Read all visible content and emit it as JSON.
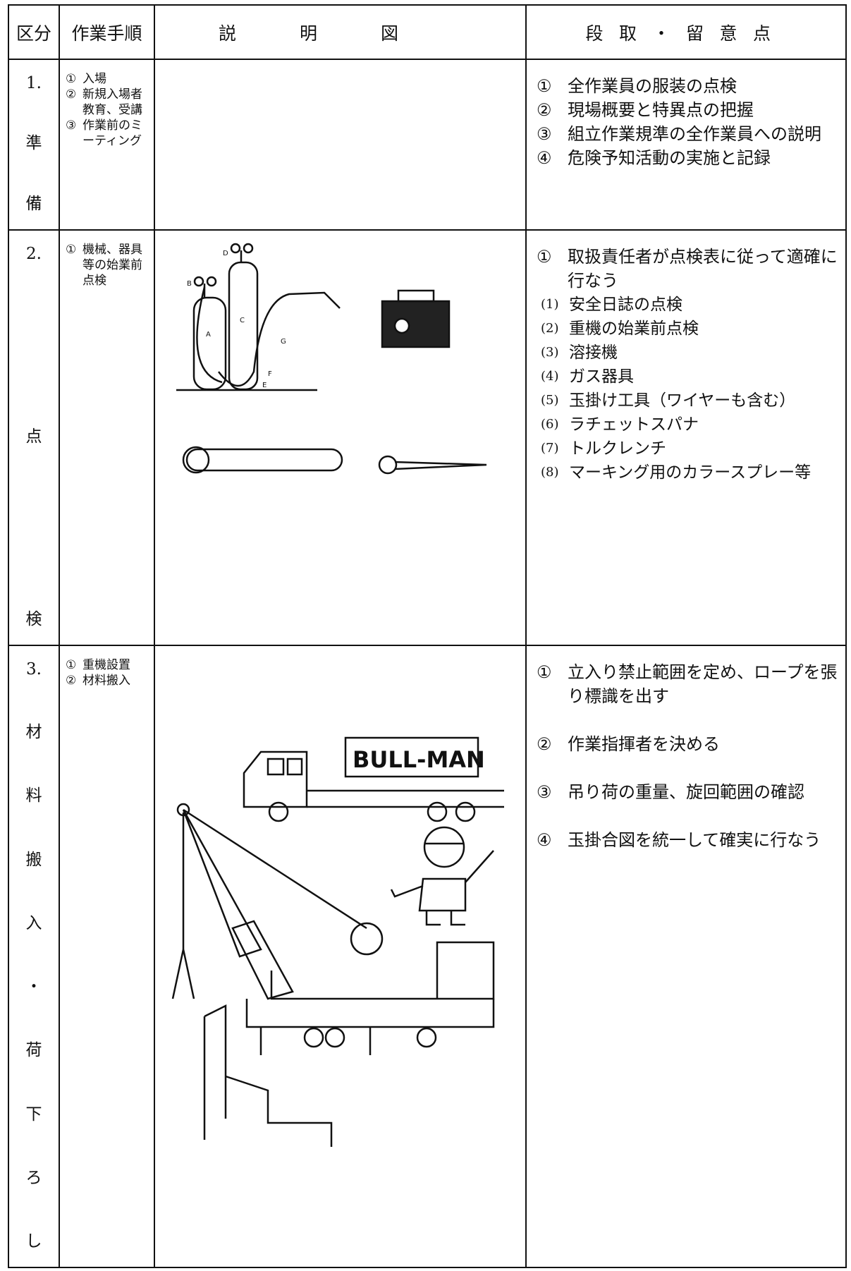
{
  "header": [
    "区分",
    "作業手順",
    "説明図",
    "段取・留意点"
  ],
  "rows": [
    {
      "number": "1.",
      "category": [
        "準",
        "備"
      ],
      "steps": [
        {
          "marker": "①",
          "text": "入場"
        },
        {
          "marker": "②",
          "text": "新規入場者教育、受講"
        },
        {
          "marker": "③",
          "text": "作業前のミーティング"
        }
      ],
      "notes": [
        {
          "marker": "①",
          "text": "全作業員の服装の点検"
        },
        {
          "marker": "②",
          "text": "現場概要と特異点の把握"
        },
        {
          "marker": "③",
          "text": "組立作業規準の全作業員への説明"
        },
        {
          "marker": "④",
          "text": "危険予知活動の実施と記録"
        }
      ]
    },
    {
      "number": "2.",
      "category": [
        "点",
        "検"
      ],
      "steps": [
        {
          "marker": "①",
          "text": "機械、器具等の始業前点検"
        }
      ],
      "figure_labels": [
        "A",
        "B",
        "C",
        "D",
        "E",
        "F",
        "G"
      ],
      "notes": [
        {
          "marker": "①",
          "text": "取扱責任者が点検表に従って適確に行なう",
          "subitems": [
            {
              "marker": "(1)",
              "text": "安全日誌の点検"
            },
            {
              "marker": "(2)",
              "text": "重機の始業前点検"
            },
            {
              "marker": "(3)",
              "text": "溶接機"
            },
            {
              "marker": "(4)",
              "text": "ガス器具"
            },
            {
              "marker": "(5)",
              "text": "玉掛け工具（ワイヤーも含む）"
            },
            {
              "marker": "(6)",
              "text": "ラチェットスパナ"
            },
            {
              "marker": "(7)",
              "text": "トルクレンチ"
            },
            {
              "marker": "(8)",
              "text": "マーキング用のカラースプレー等"
            }
          ]
        }
      ]
    },
    {
      "number": "3.",
      "category": [
        "材",
        "料",
        "搬",
        "入",
        "・",
        "荷",
        "下",
        "ろ",
        "し"
      ],
      "steps": [
        {
          "marker": "①",
          "text": "重機設置"
        },
        {
          "marker": "②",
          "text": "材料搬入"
        }
      ],
      "figure_text": "BULL-MAN",
      "notes": [
        {
          "marker": "①",
          "text": "立入り禁止範囲を定め、ロープを張り標識を出す"
        },
        {
          "marker": "②",
          "text": "作業指揮者を決める"
        },
        {
          "marker": "③",
          "text": "吊り荷の重量、旋回範囲の確認"
        },
        {
          "marker": "④",
          "text": "玉掛合図を統一して確実に行なう"
        }
      ]
    }
  ]
}
